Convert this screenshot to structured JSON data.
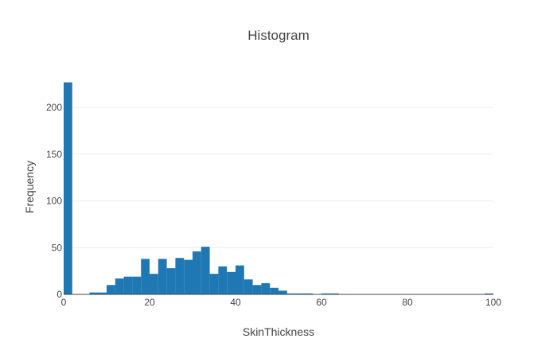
{
  "chart_data": {
    "type": "bar",
    "title": "Histogram",
    "xlabel": "SkinThickness",
    "ylabel": "Frequency",
    "xlim": [
      0,
      100
    ],
    "ylim": [
      0,
      230
    ],
    "bin_width": 2,
    "x_ticks": [
      0,
      20,
      40,
      60,
      80,
      100
    ],
    "x_tick_labels": [
      "0",
      "20",
      "40",
      "60",
      "80",
      "100"
    ],
    "y_ticks": [
      0,
      50,
      100,
      150,
      200
    ],
    "y_tick_labels": [
      "0",
      "50",
      "100",
      "150",
      "200"
    ],
    "grid": true,
    "legend": false,
    "bar_color": "#1f77b4",
    "bins": [
      {
        "x0": 0,
        "x1": 2,
        "count": 227
      },
      {
        "x0": 6,
        "x1": 8,
        "count": 2
      },
      {
        "x0": 8,
        "x1": 10,
        "count": 2
      },
      {
        "x0": 10,
        "x1": 12,
        "count": 10
      },
      {
        "x0": 12,
        "x1": 14,
        "count": 17
      },
      {
        "x0": 14,
        "x1": 16,
        "count": 19
      },
      {
        "x0": 16,
        "x1": 18,
        "count": 19
      },
      {
        "x0": 18,
        "x1": 20,
        "count": 38
      },
      {
        "x0": 20,
        "x1": 22,
        "count": 22
      },
      {
        "x0": 22,
        "x1": 24,
        "count": 38
      },
      {
        "x0": 24,
        "x1": 26,
        "count": 28
      },
      {
        "x0": 26,
        "x1": 28,
        "count": 39
      },
      {
        "x0": 28,
        "x1": 30,
        "count": 37
      },
      {
        "x0": 30,
        "x1": 32,
        "count": 46
      },
      {
        "x0": 32,
        "x1": 34,
        "count": 51
      },
      {
        "x0": 34,
        "x1": 36,
        "count": 22
      },
      {
        "x0": 36,
        "x1": 38,
        "count": 30
      },
      {
        "x0": 38,
        "x1": 40,
        "count": 24
      },
      {
        "x0": 40,
        "x1": 42,
        "count": 31
      },
      {
        "x0": 42,
        "x1": 44,
        "count": 16
      },
      {
        "x0": 44,
        "x1": 46,
        "count": 10
      },
      {
        "x0": 46,
        "x1": 48,
        "count": 12
      },
      {
        "x0": 48,
        "x1": 50,
        "count": 7
      },
      {
        "x0": 50,
        "x1": 52,
        "count": 4
      },
      {
        "x0": 52,
        "x1": 54,
        "count": 1
      },
      {
        "x0": 54,
        "x1": 56,
        "count": 1
      },
      {
        "x0": 56,
        "x1": 58,
        "count": 1
      },
      {
        "x0": 60,
        "x1": 62,
        "count": 1
      },
      {
        "x0": 62,
        "x1": 64,
        "count": 1
      },
      {
        "x0": 98,
        "x1": 100,
        "count": 1
      }
    ]
  }
}
